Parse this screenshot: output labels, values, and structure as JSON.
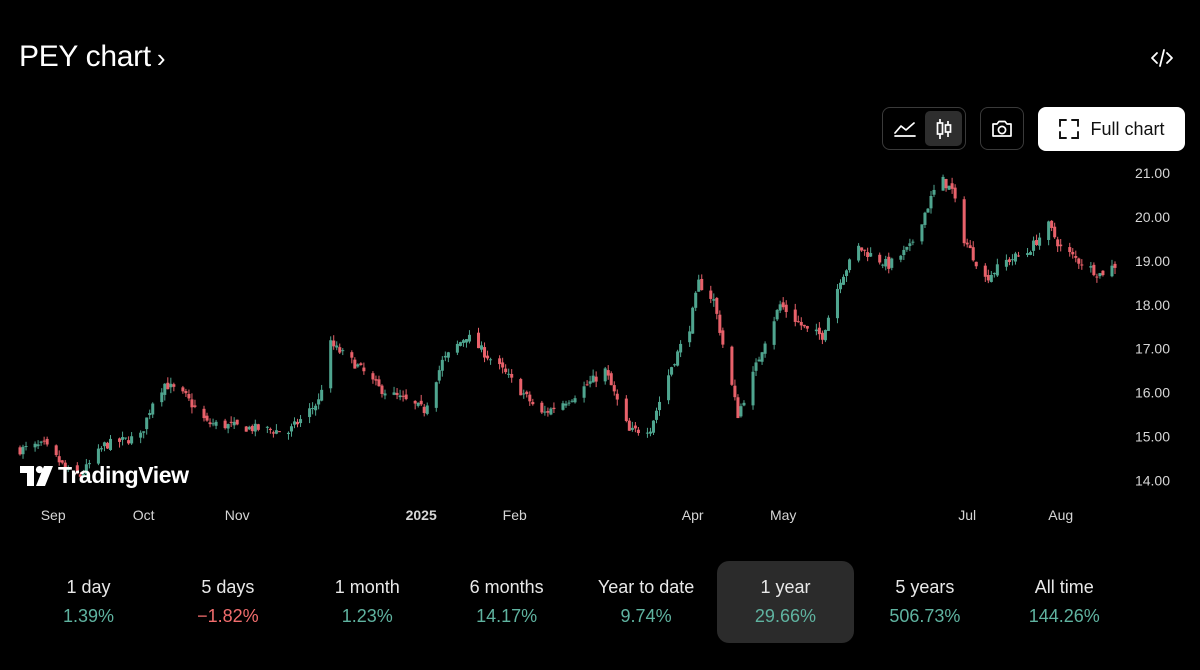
{
  "header": {
    "title": "PEY chart",
    "title_chevron": "›",
    "embed_icon": "code-icon"
  },
  "toolbar": {
    "chart_types": [
      {
        "name": "area-chart-icon",
        "active": false
      },
      {
        "name": "candlestick-icon",
        "active": true
      }
    ],
    "screenshot_icon": "camera-icon",
    "full_chart_label": "Full chart",
    "full_chart_icon": "fullscreen-icon"
  },
  "branding": {
    "logo_text": "TradingView"
  },
  "colors": {
    "up": "#4fa58f",
    "down": "#e8616a",
    "positive_text": "#5fb3a0",
    "negative_text": "#f26d6d",
    "axis_text": "#d6d6d6"
  },
  "chart_data": {
    "type": "candlestick",
    "symbol": "PEY",
    "y_axis": {
      "ticks": [
        14.0,
        15.0,
        16.0,
        17.0,
        18.0,
        19.0,
        20.0,
        21.0
      ],
      "tick_labels": [
        "14.00",
        "15.00",
        "16.00",
        "17.00",
        "18.00",
        "19.00",
        "20.00",
        "21.00"
      ],
      "range": [
        13.55,
        21.3
      ],
      "position": "right"
    },
    "x_axis": {
      "labels": [
        "Sep",
        "Oct",
        "Nov",
        "2025",
        "Feb",
        "Apr",
        "May",
        "Jul",
        "Aug"
      ],
      "bold_labels": [
        "2025"
      ],
      "label_dates": [
        "2024-09-01",
        "2024-10-01",
        "2024-11-01",
        "2025-01-01",
        "2025-02-01",
        "2025-04-01",
        "2025-05-01",
        "2025-07-01",
        "2025-08-01"
      ],
      "range": [
        "2024-08-21",
        "2025-08-19"
      ]
    },
    "close_trend": [
      [
        "2024-08-21",
        14.7
      ],
      [
        "2024-08-29",
        14.8
      ],
      [
        "2024-09-06",
        14.2
      ],
      [
        "2024-09-10",
        14.1
      ],
      [
        "2024-09-18",
        14.8
      ],
      [
        "2024-09-30",
        15.0
      ],
      [
        "2024-10-04",
        15.8
      ],
      [
        "2024-10-08",
        16.2
      ],
      [
        "2024-10-15",
        15.9
      ],
      [
        "2024-10-22",
        15.3
      ],
      [
        "2024-11-04",
        15.2
      ],
      [
        "2024-11-18",
        15.1
      ],
      [
        "2024-11-28",
        15.8
      ],
      [
        "2024-12-02",
        17.1
      ],
      [
        "2024-12-11",
        16.6
      ],
      [
        "2024-12-18",
        16.1
      ],
      [
        "2025-01-02",
        15.6
      ],
      [
        "2025-01-08",
        16.7
      ],
      [
        "2025-01-16",
        17.3
      ],
      [
        "2025-01-28",
        16.5
      ],
      [
        "2025-02-10",
        15.5
      ],
      [
        "2025-02-20",
        15.9
      ],
      [
        "2025-03-03",
        16.5
      ],
      [
        "2025-03-11",
        15.1
      ],
      [
        "2025-03-18",
        15.2
      ],
      [
        "2025-03-25",
        16.6
      ],
      [
        "2025-03-31",
        17.5
      ],
      [
        "2025-04-03",
        18.5
      ],
      [
        "2025-04-08",
        18.1
      ],
      [
        "2025-04-11",
        17.1
      ],
      [
        "2025-04-16",
        15.5
      ],
      [
        "2025-04-21",
        16.4
      ],
      [
        "2025-04-25",
        17.2
      ],
      [
        "2025-04-30",
        18.0
      ],
      [
        "2025-05-09",
        17.4
      ],
      [
        "2025-05-14",
        17.3
      ],
      [
        "2025-05-20",
        18.6
      ],
      [
        "2025-05-26",
        19.3
      ],
      [
        "2025-06-05",
        18.9
      ],
      [
        "2025-06-12",
        19.3
      ],
      [
        "2025-06-22",
        20.9
      ],
      [
        "2025-06-26",
        20.6
      ],
      [
        "2025-06-30",
        19.5
      ],
      [
        "2025-07-07",
        18.6
      ],
      [
        "2025-07-14",
        19.0
      ],
      [
        "2025-07-21",
        19.2
      ],
      [
        "2025-07-28",
        19.8
      ],
      [
        "2025-08-01",
        19.3
      ],
      [
        "2025-08-07",
        19.0
      ],
      [
        "2025-08-14",
        18.7
      ],
      [
        "2025-08-19",
        18.9
      ]
    ]
  },
  "periods": [
    {
      "label": "1 day",
      "value": "1.39%",
      "direction": "up",
      "selected": false
    },
    {
      "label": "5 days",
      "value": "−1.82%",
      "direction": "down",
      "selected": false
    },
    {
      "label": "1 month",
      "value": "1.23%",
      "direction": "up",
      "selected": false
    },
    {
      "label": "6 months",
      "value": "14.17%",
      "direction": "up",
      "selected": false
    },
    {
      "label": "Year to date",
      "value": "9.74%",
      "direction": "up",
      "selected": false
    },
    {
      "label": "1 year",
      "value": "29.66%",
      "direction": "up",
      "selected": true
    },
    {
      "label": "5 years",
      "value": "506.73%",
      "direction": "up",
      "selected": false
    },
    {
      "label": "All time",
      "value": "144.26%",
      "direction": "up",
      "selected": false
    }
  ]
}
